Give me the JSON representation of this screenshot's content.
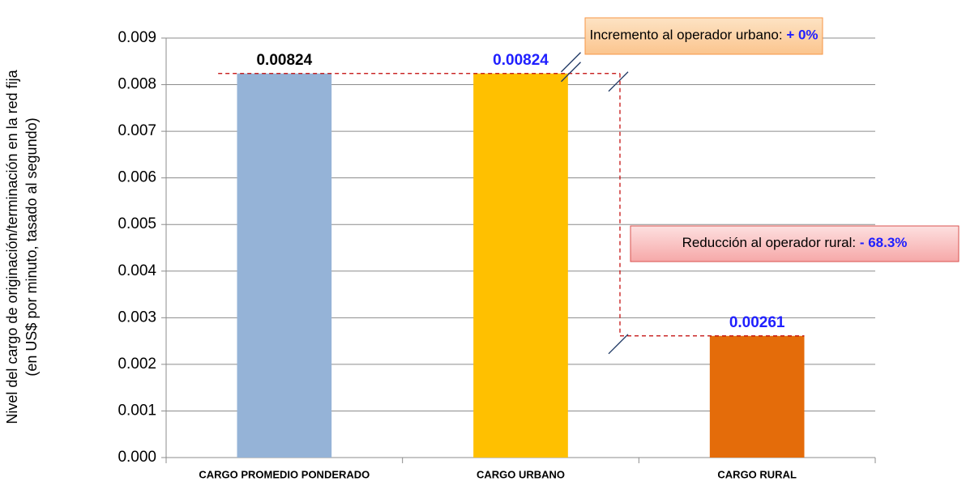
{
  "chart_data": {
    "type": "bar",
    "ylabel": [
      "Nivel del cargo de originación/terminación en la red fija",
      "(en US$ por minuto, tasado al segundo)"
    ],
    "categories": [
      "CARGO PROMEDIO PONDERADO",
      "CARGO URBANO",
      "CARGO RURAL"
    ],
    "values": [
      0.00824,
      0.00824,
      0.00261
    ],
    "colors": [
      "#95b3d7",
      "#ffc000",
      "#e46c0a"
    ],
    "label_colors": [
      "#000000",
      "#1f1fff",
      "#1f1fff"
    ],
    "ylim": [
      0,
      0.009
    ],
    "yticks": [
      {
        "value": 0,
        "label": "0.000"
      },
      0.001,
      0.002,
      0.003,
      0.004,
      0.005,
      0.006,
      0.007,
      0.008,
      0.009
    ],
    "grid": true,
    "annotations": [
      {
        "text": "Incremento al operador urbano: ",
        "highlight": "+ 0%"
      },
      {
        "text": "Reducción al operador rural: ",
        "highlight": "- 68.3%"
      }
    ]
  }
}
